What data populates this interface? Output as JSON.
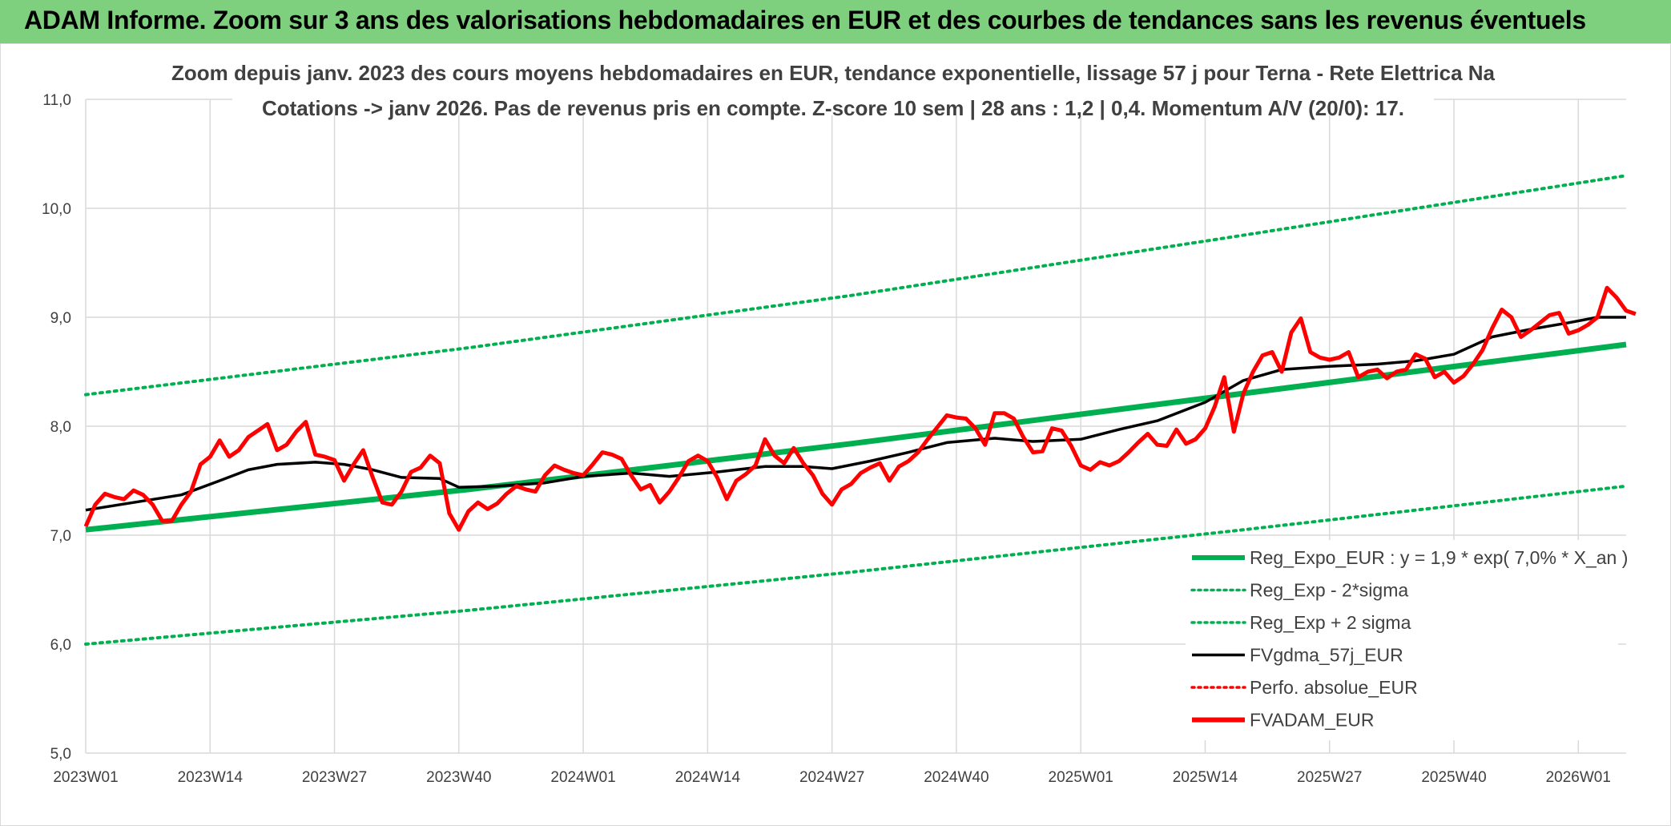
{
  "header": {
    "banner": "ADAM Informe. Zoom sur 3 ans des valorisations hebdomadaires en EUR et des courbes de tendances sans les revenus éventuels"
  },
  "colors": {
    "banner_bg": "#7ed07e",
    "green": "#00b050",
    "black": "#000000",
    "red": "#ff0000",
    "grid": "#d9d9d9"
  },
  "chart_data": {
    "type": "line",
    "title_line1": "Zoom depuis janv. 2023 des cours moyens hebdomadaires en EUR, tendance exponentielle, lissage 57 j pour Terna - Rete Elettrica Na",
    "title_line2": "Cotations -> janv 2026. Pas de revenus pris en compte. Z-score 10 sem | 28 ans : 1,2 | 0,4. Momentum A/V (20/0): 17.",
    "ylim": [
      5.0,
      11.0
    ],
    "y_ticks": [
      "5,0",
      "6,0",
      "7,0",
      "8,0",
      "9,0",
      "10,0",
      "11,0"
    ],
    "x_ticks": [
      "2023W01",
      "2023W14",
      "2023W27",
      "2023W40",
      "2024W01",
      "2024W14",
      "2024W27",
      "2024W40",
      "2025W01",
      "2025W14",
      "2025W27",
      "2025W40",
      "2026W01"
    ],
    "x_tick_weeks": [
      0,
      13,
      26,
      39,
      52,
      65,
      78,
      91,
      104,
      117,
      130,
      143,
      156
    ],
    "x_range": [
      0,
      161
    ],
    "grid": true,
    "legend_position": "bottom-right",
    "legend": [
      {
        "label": "Reg_Expo_EUR : y = 1,9 * exp( 7,0% *  X_an )",
        "color": "#00b050",
        "style": "solid-thick"
      },
      {
        "label": "Reg_Exp - 2*sigma",
        "color": "#00b050",
        "style": "dotted"
      },
      {
        "label": "Reg_Exp + 2 sigma",
        "color": "#00b050",
        "style": "dotted"
      },
      {
        "label": "FVgdma_57j_EUR",
        "color": "#000000",
        "style": "solid"
      },
      {
        "label": "Perfo. absolue_EUR",
        "color": "#ff0000",
        "style": "dotted"
      },
      {
        "label": "FVADAM_EUR",
        "color": "#ff0000",
        "style": "solid-thick"
      }
    ],
    "series": [
      {
        "name": "Reg_Expo_EUR",
        "color": "#00b050",
        "points": [
          [
            0,
            7.05
          ],
          [
            40,
            7.42
          ],
          [
            80,
            7.84
          ],
          [
            120,
            8.29
          ],
          [
            161,
            8.75
          ]
        ]
      },
      {
        "name": "Reg_Exp + 2 sigma",
        "color": "#00b050",
        "points": [
          [
            0,
            8.29
          ],
          [
            40,
            8.72
          ],
          [
            80,
            9.2
          ],
          [
            120,
            9.74
          ],
          [
            161,
            10.3
          ]
        ]
      },
      {
        "name": "Reg_Exp - 2*sigma",
        "color": "#00b050",
        "points": [
          [
            0,
            6.0
          ],
          [
            40,
            6.31
          ],
          [
            80,
            6.66
          ],
          [
            120,
            7.04
          ],
          [
            161,
            7.45
          ]
        ]
      },
      {
        "name": "FVgdma_57j_EUR",
        "color": "#000000",
        "points": [
          [
            0,
            7.23
          ],
          [
            5,
            7.3
          ],
          [
            10,
            7.37
          ],
          [
            14,
            7.5
          ],
          [
            17,
            7.6
          ],
          [
            20,
            7.65
          ],
          [
            24,
            7.67
          ],
          [
            27,
            7.65
          ],
          [
            30,
            7.6
          ],
          [
            33,
            7.53
          ],
          [
            37,
            7.52
          ],
          [
            39,
            7.44
          ],
          [
            43,
            7.45
          ],
          [
            48,
            7.48
          ],
          [
            52,
            7.54
          ],
          [
            57,
            7.57
          ],
          [
            61,
            7.54
          ],
          [
            66,
            7.58
          ],
          [
            71,
            7.63
          ],
          [
            75,
            7.63
          ],
          [
            78,
            7.61
          ],
          [
            82,
            7.68
          ],
          [
            86,
            7.76
          ],
          [
            90,
            7.85
          ],
          [
            95,
            7.89
          ],
          [
            99,
            7.86
          ],
          [
            104,
            7.88
          ],
          [
            108,
            7.97
          ],
          [
            112,
            8.05
          ],
          [
            117,
            8.22
          ],
          [
            121,
            8.42
          ],
          [
            125,
            8.52
          ],
          [
            130,
            8.55
          ],
          [
            135,
            8.57
          ],
          [
            139,
            8.6
          ],
          [
            143,
            8.66
          ],
          [
            147,
            8.82
          ],
          [
            151,
            8.89
          ],
          [
            155,
            8.95
          ],
          [
            158,
            9.0
          ],
          [
            161,
            9.0
          ]
        ]
      },
      {
        "name": "FVADAM_EUR",
        "color": "#ff0000",
        "points": [
          [
            0,
            7.08
          ],
          [
            1,
            7.28
          ],
          [
            2,
            7.38
          ],
          [
            3,
            7.35
          ],
          [
            4,
            7.33
          ],
          [
            5,
            7.41
          ],
          [
            6,
            7.37
          ],
          [
            7,
            7.28
          ],
          [
            8,
            7.13
          ],
          [
            9,
            7.13
          ],
          [
            10,
            7.28
          ],
          [
            11,
            7.4
          ],
          [
            12,
            7.65
          ],
          [
            13,
            7.72
          ],
          [
            14,
            7.87
          ],
          [
            15,
            7.72
          ],
          [
            16,
            7.78
          ],
          [
            17,
            7.9
          ],
          [
            18,
            7.96
          ],
          [
            19,
            8.02
          ],
          [
            20,
            7.78
          ],
          [
            21,
            7.83
          ],
          [
            22,
            7.95
          ],
          [
            23,
            8.04
          ],
          [
            24,
            7.74
          ],
          [
            25,
            7.72
          ],
          [
            26,
            7.69
          ],
          [
            27,
            7.5
          ],
          [
            28,
            7.65
          ],
          [
            29,
            7.78
          ],
          [
            30,
            7.53
          ],
          [
            31,
            7.3
          ],
          [
            32,
            7.28
          ],
          [
            33,
            7.4
          ],
          [
            34,
            7.58
          ],
          [
            35,
            7.62
          ],
          [
            36,
            7.73
          ],
          [
            37,
            7.66
          ],
          [
            38,
            7.2
          ],
          [
            39,
            7.05
          ],
          [
            40,
            7.22
          ],
          [
            41,
            7.3
          ],
          [
            42,
            7.24
          ],
          [
            43,
            7.29
          ],
          [
            44,
            7.38
          ],
          [
            45,
            7.45
          ],
          [
            46,
            7.42
          ],
          [
            47,
            7.4
          ],
          [
            48,
            7.55
          ],
          [
            49,
            7.64
          ],
          [
            50,
            7.6
          ],
          [
            51,
            7.57
          ],
          [
            52,
            7.55
          ],
          [
            53,
            7.65
          ],
          [
            54,
            7.76
          ],
          [
            55,
            7.74
          ],
          [
            56,
            7.7
          ],
          [
            57,
            7.55
          ],
          [
            58,
            7.42
          ],
          [
            59,
            7.46
          ],
          [
            60,
            7.3
          ],
          [
            61,
            7.4
          ],
          [
            62,
            7.53
          ],
          [
            63,
            7.68
          ],
          [
            64,
            7.73
          ],
          [
            65,
            7.68
          ],
          [
            66,
            7.53
          ],
          [
            67,
            7.33
          ],
          [
            68,
            7.5
          ],
          [
            69,
            7.56
          ],
          [
            70,
            7.64
          ],
          [
            71,
            7.88
          ],
          [
            72,
            7.73
          ],
          [
            73,
            7.66
          ],
          [
            74,
            7.8
          ],
          [
            75,
            7.66
          ],
          [
            76,
            7.55
          ],
          [
            77,
            7.38
          ],
          [
            78,
            7.28
          ],
          [
            79,
            7.42
          ],
          [
            80,
            7.47
          ],
          [
            81,
            7.57
          ],
          [
            82,
            7.62
          ],
          [
            83,
            7.66
          ],
          [
            84,
            7.5
          ],
          [
            85,
            7.63
          ],
          [
            86,
            7.68
          ],
          [
            87,
            7.76
          ],
          [
            88,
            7.88
          ],
          [
            89,
            7.99
          ],
          [
            90,
            8.1
          ],
          [
            91,
            8.08
          ],
          [
            92,
            8.07
          ],
          [
            93,
            7.98
          ],
          [
            94,
            7.83
          ],
          [
            95,
            8.12
          ],
          [
            96,
            8.12
          ],
          [
            97,
            8.07
          ],
          [
            98,
            7.9
          ],
          [
            99,
            7.76
          ],
          [
            100,
            7.77
          ],
          [
            101,
            7.98
          ],
          [
            102,
            7.96
          ],
          [
            103,
            7.82
          ],
          [
            104,
            7.64
          ],
          [
            105,
            7.6
          ],
          [
            106,
            7.67
          ],
          [
            107,
            7.64
          ],
          [
            108,
            7.68
          ],
          [
            109,
            7.76
          ],
          [
            110,
            7.85
          ],
          [
            111,
            7.93
          ],
          [
            112,
            7.83
          ],
          [
            113,
            7.82
          ],
          [
            114,
            7.97
          ],
          [
            115,
            7.84
          ],
          [
            116,
            7.88
          ],
          [
            117,
            7.98
          ],
          [
            118,
            8.18
          ],
          [
            119,
            8.45
          ],
          [
            120,
            7.95
          ],
          [
            121,
            8.3
          ],
          [
            122,
            8.5
          ],
          [
            123,
            8.65
          ],
          [
            124,
            8.68
          ],
          [
            125,
            8.5
          ],
          [
            126,
            8.86
          ],
          [
            127,
            8.99
          ],
          [
            128,
            8.68
          ],
          [
            129,
            8.63
          ],
          [
            130,
            8.61
          ],
          [
            131,
            8.63
          ],
          [
            132,
            8.68
          ],
          [
            133,
            8.45
          ],
          [
            134,
            8.5
          ],
          [
            135,
            8.52
          ],
          [
            136,
            8.44
          ],
          [
            137,
            8.5
          ],
          [
            138,
            8.52
          ],
          [
            139,
            8.66
          ],
          [
            140,
            8.62
          ],
          [
            141,
            8.45
          ],
          [
            142,
            8.5
          ],
          [
            143,
            8.4
          ],
          [
            144,
            8.46
          ],
          [
            145,
            8.57
          ],
          [
            146,
            8.7
          ],
          [
            147,
            8.9
          ],
          [
            148,
            9.07
          ],
          [
            149,
            9.0
          ],
          [
            150,
            8.82
          ],
          [
            151,
            8.88
          ],
          [
            152,
            8.95
          ],
          [
            153,
            9.02
          ],
          [
            154,
            9.04
          ],
          [
            155,
            8.85
          ],
          [
            156,
            8.88
          ],
          [
            157,
            8.93
          ],
          [
            158,
            9.0
          ],
          [
            159,
            9.27
          ],
          [
            160,
            9.18
          ],
          [
            161,
            9.06
          ],
          [
            162,
            9.03
          ]
        ]
      }
    ]
  }
}
